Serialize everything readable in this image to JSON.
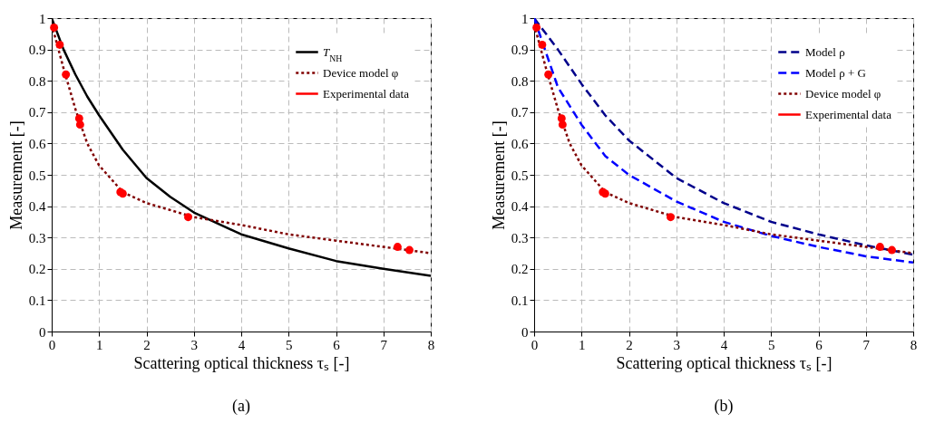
{
  "chart_data": [
    {
      "type": "line",
      "title": "(a)",
      "xlabel": "Scattering optical thickness τₛ [-]",
      "ylabel": "Measurement  [-]",
      "xlim": [
        0,
        8
      ],
      "ylim": [
        0,
        1
      ],
      "xticks": [
        0,
        1,
        2,
        3,
        4,
        5,
        6,
        7,
        8
      ],
      "yticks": [
        0,
        0.1,
        0.2,
        0.3,
        0.4,
        0.5,
        0.6,
        0.7,
        0.8,
        0.9,
        1
      ],
      "grid": true,
      "legend": "top right",
      "series": [
        {
          "name": "T$_{NH}$",
          "type": "line",
          "color": "#000000",
          "line_style": "solid",
          "x": [
            0,
            0.25,
            0.5,
            0.75,
            1,
            1.5,
            2,
            2.5,
            3,
            4,
            5,
            6,
            7,
            8
          ],
          "values": [
            1.0,
            0.9,
            0.82,
            0.75,
            0.69,
            0.58,
            0.49,
            0.43,
            0.38,
            0.31,
            0.265,
            0.225,
            0.2,
            0.178
          ]
        },
        {
          "name": "Device model φ",
          "type": "line",
          "color": "#800000",
          "line_style": "dotted",
          "x": [
            0,
            0.25,
            0.5,
            0.75,
            1,
            1.5,
            2,
            3,
            4,
            5,
            6,
            7,
            8
          ],
          "values": [
            0.98,
            0.84,
            0.71,
            0.6,
            0.53,
            0.445,
            0.41,
            0.365,
            0.34,
            0.31,
            0.29,
            0.27,
            0.25
          ]
        },
        {
          "name": "Experimental data",
          "type": "scatter",
          "marker": "circle",
          "color": "#ff0000",
          "x": [
            0.05,
            0.17,
            0.3,
            0.58,
            0.6,
            1.45,
            1.5,
            2.88,
            7.3,
            7.55
          ],
          "values": [
            0.97,
            0.915,
            0.82,
            0.68,
            0.66,
            0.445,
            0.44,
            0.365,
            0.27,
            0.26
          ]
        }
      ]
    },
    {
      "type": "line",
      "title": "(b)",
      "xlabel": "Scattering optical thickness τₛ [-]",
      "ylabel": "Measurement  [-]",
      "xlim": [
        0,
        8
      ],
      "ylim": [
        0,
        1
      ],
      "xticks": [
        0,
        1,
        2,
        3,
        4,
        5,
        6,
        7,
        8
      ],
      "yticks": [
        0,
        0.1,
        0.2,
        0.3,
        0.4,
        0.5,
        0.6,
        0.7,
        0.8,
        0.9,
        1
      ],
      "grid": true,
      "legend": "top right",
      "series": [
        {
          "name": "Model ρ",
          "type": "line",
          "color": "#00008b",
          "line_style": "dashed",
          "x": [
            0,
            0.5,
            1,
            1.5,
            2,
            3,
            4,
            5,
            6,
            7,
            8
          ],
          "values": [
            1.0,
            0.9,
            0.79,
            0.69,
            0.61,
            0.49,
            0.41,
            0.35,
            0.31,
            0.275,
            0.245
          ]
        },
        {
          "name": "Model ρ + G",
          "type": "line",
          "color": "#0000ff",
          "line_style": "dashed",
          "x": [
            0,
            0.5,
            1,
            1.5,
            2,
            3,
            4,
            5,
            6,
            7,
            8
          ],
          "values": [
            1.0,
            0.78,
            0.66,
            0.56,
            0.5,
            0.415,
            0.35,
            0.305,
            0.27,
            0.24,
            0.22
          ]
        },
        {
          "name": "Device model φ",
          "type": "line",
          "color": "#800000",
          "line_style": "dotted",
          "x": [
            0,
            0.25,
            0.5,
            0.75,
            1,
            1.5,
            2,
            3,
            4,
            5,
            6,
            7,
            8
          ],
          "values": [
            0.98,
            0.84,
            0.71,
            0.6,
            0.53,
            0.445,
            0.41,
            0.365,
            0.34,
            0.31,
            0.29,
            0.27,
            0.25
          ]
        },
        {
          "name": "Experimental data",
          "type": "scatter",
          "marker": "circle",
          "color": "#ff0000",
          "x": [
            0.05,
            0.17,
            0.3,
            0.58,
            0.6,
            1.45,
            1.5,
            2.88,
            7.3,
            7.55
          ],
          "values": [
            0.97,
            0.915,
            0.82,
            0.68,
            0.66,
            0.445,
            0.44,
            0.365,
            0.27,
            0.26
          ]
        }
      ]
    }
  ]
}
